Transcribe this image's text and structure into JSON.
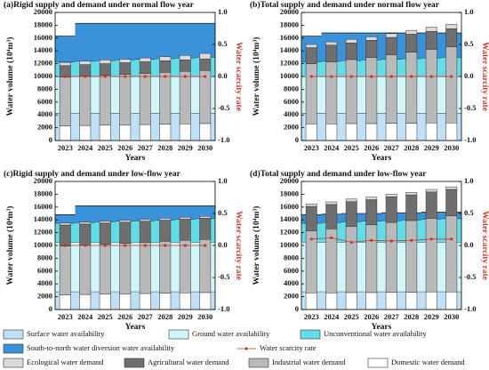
{
  "chart_data": [
    {
      "type": "bar",
      "title": "(a)Rigid supply and demand under normal flow year",
      "x_label": "Years",
      "y_label": "Water volume (10⁴m³)",
      "y2_label": "Water scarcity rate",
      "categories": [
        "2023",
        "2024",
        "2025",
        "2026",
        "2027",
        "2028",
        "2029",
        "2030"
      ],
      "ylim": [
        0,
        20000
      ],
      "yticks": [
        0,
        2000,
        4000,
        6000,
        8000,
        10000,
        12000,
        14000,
        16000,
        18000,
        20000
      ],
      "y2lim": [
        -1,
        1
      ],
      "y2ticks": [
        {
          "value": -1,
          "label": "-1.0"
        },
        -0.5,
        {
          "value": 0,
          "label": "0.0"
        },
        0.5,
        {
          "value": 1,
          "label": "1.0"
        }
      ],
      "series": [
        {
          "name": "Surface water availability",
          "kind": "area",
          "color": "#bfe0f7",
          "values": [
            4300,
            4300,
            4300,
            4300,
            4300,
            4300,
            4300,
            4300
          ]
        },
        {
          "name": "Ground water availability",
          "kind": "area",
          "color": "#d2f6f8",
          "values": [
            5700,
            5700,
            5700,
            5700,
            5700,
            5700,
            5700,
            5700
          ]
        },
        {
          "name": "Unconventional water availability",
          "kind": "area",
          "color": "#63dce8",
          "values": [
            2300,
            2400,
            2500,
            2600,
            2700,
            2800,
            2900,
            3000
          ]
        },
        {
          "name": "South-to-north water diversion water availability",
          "kind": "area",
          "color": "#3b92d8",
          "values": [
            4000,
            5900,
            5800,
            5700,
            5600,
            5500,
            5400,
            5300
          ]
        },
        {
          "name": "Water scarcity rate",
          "kind": "line",
          "axis": "y2",
          "color": "#c0392b",
          "values": [
            0,
            0,
            0,
            0,
            0,
            0,
            0,
            0
          ]
        },
        {
          "name": "Ecological water demand",
          "kind": "bar",
          "color": "#dadada",
          "values": [
            500,
            550,
            600,
            550,
            600,
            650,
            700,
            850
          ]
        },
        {
          "name": "Agricultural water demand",
          "kind": "bar",
          "color": "#6f6f6f",
          "values": [
            1800,
            1800,
            1800,
            1800,
            1800,
            1800,
            1800,
            1800
          ]
        },
        {
          "name": "Industrial water demand",
          "kind": "bar",
          "color": "#b9b9b9",
          "values": [
            7600,
            7700,
            7800,
            7900,
            8000,
            8100,
            8200,
            8300
          ]
        },
        {
          "name": "Domestic water demand",
          "kind": "bar",
          "color": "#ffffff",
          "values": [
            2300,
            2350,
            2400,
            2450,
            2500,
            2550,
            2600,
            2650
          ]
        }
      ]
    },
    {
      "type": "bar",
      "title": "(b)Total supply and demand under normal flow year",
      "x_label": "Years",
      "y_label": "Water volume (10⁴m³)",
      "y2_label": "Water scarcity rate",
      "categories": [
        "2023",
        "2024",
        "2025",
        "2026",
        "2027",
        "2028",
        "2029",
        "2030"
      ],
      "ylim": [
        0,
        20000
      ],
      "yticks": [
        0,
        2000,
        4000,
        6000,
        8000,
        10000,
        12000,
        14000,
        16000,
        18000,
        20000
      ],
      "y2lim": [
        -1,
        1
      ],
      "y2ticks": [
        {
          "value": -1,
          "label": "-1.0"
        },
        -0.5,
        {
          "value": 0,
          "label": "0.0"
        },
        0.5,
        {
          "value": 1,
          "label": "1.0"
        }
      ],
      "series": [
        {
          "name": "Surface water availability",
          "kind": "area",
          "color": "#bfe0f7",
          "values": [
            4300,
            4300,
            4300,
            4300,
            4300,
            4300,
            4300,
            4300
          ]
        },
        {
          "name": "Ground water availability",
          "kind": "area",
          "color": "#d2f6f8",
          "values": [
            5700,
            5700,
            5700,
            5700,
            5700,
            5700,
            5700,
            5700
          ]
        },
        {
          "name": "Unconventional water availability",
          "kind": "area",
          "color": "#63dce8",
          "values": [
            2300,
            2400,
            2500,
            2600,
            2700,
            2800,
            2900,
            3000
          ]
        },
        {
          "name": "South-to-north water diversion water availability",
          "kind": "area",
          "color": "#3b92d8",
          "values": [
            4000,
            4400,
            4300,
            4200,
            4100,
            4000,
            3900,
            3800
          ]
        },
        {
          "name": "Water scarcity rate",
          "kind": "line",
          "axis": "y2",
          "color": "#c0392b",
          "values": [
            0,
            0,
            0,
            0,
            0,
            0,
            0,
            0
          ]
        },
        {
          "name": "Ecological water demand",
          "kind": "bar",
          "color": "#dadada",
          "values": [
            500,
            500,
            550,
            550,
            600,
            600,
            650,
            700
          ]
        },
        {
          "name": "Agricultural water demand",
          "kind": "bar",
          "color": "#6f6f6f",
          "values": [
            2500,
            2600,
            2600,
            2700,
            2700,
            2800,
            2800,
            2800
          ]
        },
        {
          "name": "Industrial water demand",
          "kind": "bar",
          "color": "#b9b9b9",
          "values": [
            9400,
            9700,
            10000,
            10300,
            10700,
            11100,
            11500,
            11900
          ]
        },
        {
          "name": "Domestic water demand",
          "kind": "bar",
          "color": "#ffffff",
          "values": [
            2600,
            2600,
            2650,
            2650,
            2700,
            2700,
            2750,
            2750
          ]
        }
      ]
    },
    {
      "type": "bar",
      "title": "(c)Rigid supply and demand under low-flow year",
      "x_label": "Years",
      "y_label": "Water volume (10⁴m³)",
      "y2_label": "Water scarcity rate",
      "categories": [
        "2023",
        "2024",
        "2025",
        "2026",
        "2027",
        "2028",
        "2029",
        "2030"
      ],
      "ylim": [
        0,
        20000
      ],
      "yticks": [
        0,
        2000,
        4000,
        6000,
        8000,
        10000,
        12000,
        14000,
        16000,
        18000,
        20000
      ],
      "y2lim": [
        -1,
        1
      ],
      "y2ticks": [
        {
          "value": -1,
          "label": "-1.0"
        },
        -0.5,
        {
          "value": 0,
          "label": "0.0"
        },
        0.5,
        {
          "value": 1,
          "label": "1.0"
        }
      ],
      "series": [
        {
          "name": "Surface water availability",
          "kind": "area",
          "color": "#bfe0f7",
          "values": [
            2800,
            2800,
            2800,
            2800,
            2800,
            2800,
            2800,
            2800
          ]
        },
        {
          "name": "Ground water availability",
          "kind": "area",
          "color": "#d2f6f8",
          "values": [
            7700,
            7700,
            7700,
            7700,
            7700,
            7700,
            7700,
            7700
          ]
        },
        {
          "name": "Unconventional water availability",
          "kind": "area",
          "color": "#63dce8",
          "values": [
            3000,
            3100,
            3200,
            3300,
            3400,
            3500,
            3600,
            3700
          ]
        },
        {
          "name": "South-to-north water diversion water availability",
          "kind": "area",
          "color": "#3b92d8",
          "values": [
            1300,
            2600,
            2500,
            2400,
            2300,
            2200,
            2100,
            2000
          ]
        },
        {
          "name": "Water scarcity rate",
          "kind": "line",
          "axis": "y2",
          "color": "#c0392b",
          "values": [
            0,
            0,
            0,
            0,
            0,
            0,
            0,
            0
          ]
        },
        {
          "name": "Ecological water demand",
          "kind": "bar",
          "color": "#dadada",
          "values": [
            300,
            300,
            300,
            300,
            300,
            300,
            300,
            300
          ]
        },
        {
          "name": "Agricultural water demand",
          "kind": "bar",
          "color": "#6f6f6f",
          "values": [
            3300,
            3300,
            3300,
            3300,
            3300,
            3300,
            3300,
            3300
          ]
        },
        {
          "name": "Industrial water demand",
          "kind": "bar",
          "color": "#b9b9b9",
          "values": [
            7600,
            7700,
            7800,
            7900,
            8000,
            8100,
            8200,
            8300
          ]
        },
        {
          "name": "Domestic water demand",
          "kind": "bar",
          "color": "#ffffff",
          "values": [
            2300,
            2350,
            2400,
            2450,
            2500,
            2550,
            2600,
            2650
          ]
        }
      ]
    },
    {
      "type": "bar",
      "title": "(d)Total supply and demand under low-flow year",
      "x_label": "Years",
      "y_label": "Water volume (10⁴m³)",
      "y2_label": "Water scarcity rate",
      "categories": [
        "2023",
        "2024",
        "2025",
        "2026",
        "2027",
        "2028",
        "2029",
        "2030"
      ],
      "ylim": [
        0,
        20000
      ],
      "yticks": [
        0,
        2000,
        4000,
        6000,
        8000,
        10000,
        12000,
        14000,
        16000,
        18000,
        20000
      ],
      "y2lim": [
        -1,
        1
      ],
      "y2ticks": [
        {
          "value": -1,
          "label": "-1.0"
        },
        -0.5,
        {
          "value": 0,
          "label": "0.0"
        },
        0.5,
        {
          "value": 1,
          "label": "1.0"
        }
      ],
      "series": [
        {
          "name": "Surface water availability",
          "kind": "area",
          "color": "#bfe0f7",
          "values": [
            2800,
            2800,
            2800,
            2800,
            2800,
            2800,
            2800,
            2800
          ]
        },
        {
          "name": "Ground water availability",
          "kind": "area",
          "color": "#d2f6f8",
          "values": [
            7700,
            7700,
            7700,
            7700,
            7700,
            7700,
            7700,
            7700
          ]
        },
        {
          "name": "Unconventional water availability",
          "kind": "area",
          "color": "#63dce8",
          "values": [
            3000,
            3100,
            3200,
            3300,
            3400,
            3500,
            3600,
            3700
          ]
        },
        {
          "name": "South-to-north water diversion water availability",
          "kind": "area",
          "color": "#3b92d8",
          "values": [
            1300,
            1300,
            1300,
            1200,
            1200,
            1100,
            1100,
            1000
          ]
        },
        {
          "name": "Water scarcity rate",
          "kind": "line",
          "axis": "y2",
          "color": "#c0392b",
          "values": [
            0.1,
            0.12,
            0.05,
            0.08,
            0.07,
            0.08,
            0.1,
            0.1
          ]
        },
        {
          "name": "Ecological water demand",
          "kind": "bar",
          "color": "#dadada",
          "values": [
            400,
            400,
            400,
            400,
            400,
            400,
            400,
            400
          ]
        },
        {
          "name": "Agricultural water demand",
          "kind": "bar",
          "color": "#6f6f6f",
          "values": [
            3800,
            3800,
            3900,
            3900,
            4000,
            4000,
            4100,
            4100
          ]
        },
        {
          "name": "Industrial water demand",
          "kind": "bar",
          "color": "#b9b9b9",
          "values": [
            9700,
            10000,
            10300,
            10600,
            10900,
            11200,
            11500,
            11900
          ]
        },
        {
          "name": "Domestic water demand",
          "kind": "bar",
          "color": "#ffffff",
          "values": [
            2600,
            2600,
            2650,
            2650,
            2700,
            2700,
            2750,
            2750
          ]
        }
      ]
    }
  ]
}
